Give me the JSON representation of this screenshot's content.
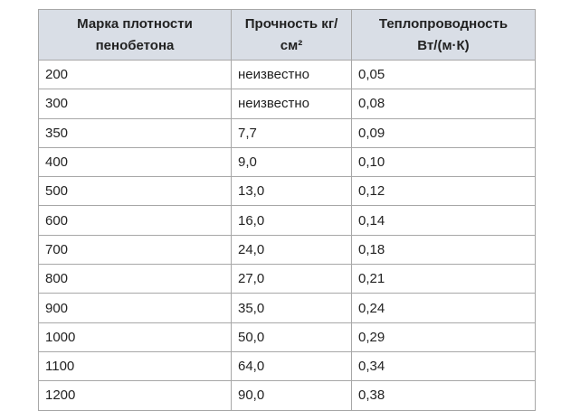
{
  "table": {
    "header": [
      "Марка плотности\nпенобетона",
      "Прочность кг/\nсм²",
      "Теплопроводность\nВт/(м·К)"
    ],
    "rows": [
      [
        "200",
        "неизвестно",
        "0,05"
      ],
      [
        "300",
        "неизвестно",
        "0,08"
      ],
      [
        "350",
        "7,7",
        "0,09"
      ],
      [
        "400",
        "9,0",
        "0,10"
      ],
      [
        "500",
        "13,0",
        "0,12"
      ],
      [
        "600",
        "16,0",
        "0,14"
      ],
      [
        "700",
        "24,0",
        "0,18"
      ],
      [
        "800",
        "27,0",
        "0,21"
      ],
      [
        "900",
        "35,0",
        "0,24"
      ],
      [
        "1000",
        "50,0",
        "0,29"
      ],
      [
        "1100",
        "64,0",
        "0,34"
      ],
      [
        "1200",
        "90,0",
        "0,38"
      ]
    ]
  }
}
